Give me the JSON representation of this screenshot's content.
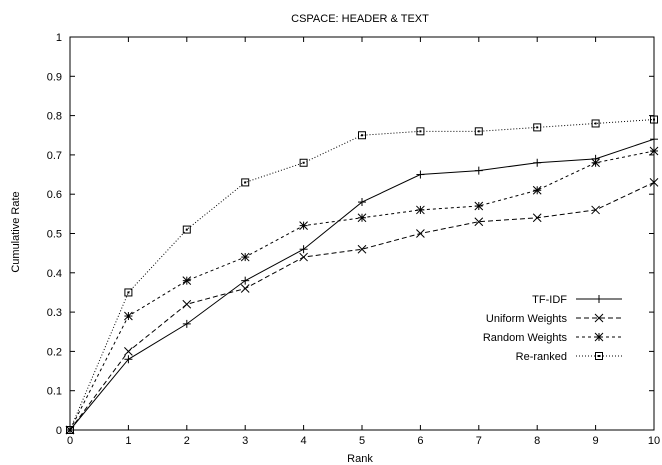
{
  "chart_data": {
    "type": "line",
    "title": "CSPACE: HEADER & TEXT",
    "xlabel": "Rank",
    "ylabel": "Cumulative Rate",
    "x": [
      0,
      1,
      2,
      3,
      4,
      5,
      6,
      7,
      8,
      9,
      10
    ],
    "xlim": [
      0,
      10
    ],
    "ylim": [
      0,
      1
    ],
    "xticks": [
      "0",
      "1",
      "2",
      "3",
      "4",
      "5",
      "6",
      "7",
      "8",
      "9",
      "10"
    ],
    "yticks": [
      "0",
      "0.1",
      "0.2",
      "0.3",
      "0.4",
      "0.5",
      "0.6",
      "0.7",
      "0.8",
      "0.9",
      "1"
    ],
    "grid": false,
    "legend_position": "lower-right",
    "series": [
      {
        "name": "TF-IDF",
        "marker": "plus",
        "dash": "solid",
        "values": [
          0,
          0.18,
          0.27,
          0.38,
          0.46,
          0.58,
          0.65,
          0.66,
          0.68,
          0.69,
          0.74
        ]
      },
      {
        "name": "Uniform Weights",
        "marker": "cross",
        "dash": "dashed",
        "values": [
          0,
          0.2,
          0.32,
          0.36,
          0.44,
          0.46,
          0.5,
          0.53,
          0.54,
          0.56,
          0.63
        ]
      },
      {
        "name": "Random Weights",
        "marker": "star",
        "dash": "short-dashed",
        "values": [
          0,
          0.29,
          0.38,
          0.44,
          0.52,
          0.54,
          0.56,
          0.57,
          0.61,
          0.68,
          0.71
        ]
      },
      {
        "name": "Re-ranked",
        "marker": "square",
        "dash": "dotted",
        "values": [
          0,
          0.35,
          0.51,
          0.63,
          0.68,
          0.75,
          0.76,
          0.76,
          0.77,
          0.78,
          0.79
        ]
      }
    ]
  }
}
